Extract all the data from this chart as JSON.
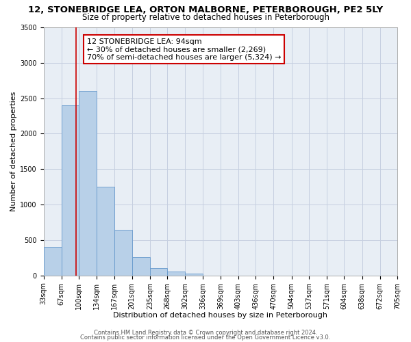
{
  "title1": "12, STONEBRIDGE LEA, ORTON MALBORNE, PETERBOROUGH, PE2 5LY",
  "title2": "Size of property relative to detached houses in Peterborough",
  "xlabel": "Distribution of detached houses by size in Peterborough",
  "ylabel": "Number of detached properties",
  "bar_values": [
    400,
    2400,
    2600,
    1250,
    640,
    260,
    100,
    55,
    30,
    0,
    0,
    0,
    0,
    0,
    0,
    0,
    0,
    0,
    0,
    0
  ],
  "bin_labels": [
    "33sqm",
    "67sqm",
    "100sqm",
    "134sqm",
    "167sqm",
    "201sqm",
    "235sqm",
    "268sqm",
    "302sqm",
    "336sqm",
    "369sqm",
    "403sqm",
    "436sqm",
    "470sqm",
    "504sqm",
    "537sqm",
    "571sqm",
    "604sqm",
    "638sqm",
    "672sqm",
    "705sqm"
  ],
  "bin_edges": [
    33,
    67,
    100,
    134,
    167,
    201,
    235,
    268,
    302,
    336,
    369,
    403,
    436,
    470,
    504,
    537,
    571,
    604,
    638,
    672,
    705
  ],
  "bar_color": "#b8d0e8",
  "bar_edge_color": "#6699cc",
  "vline_x": 94,
  "vline_color": "#cc0000",
  "ylim": [
    0,
    3500
  ],
  "yticks": [
    0,
    500,
    1000,
    1500,
    2000,
    2500,
    3000,
    3500
  ],
  "annotation_title": "12 STONEBRIDGE LEA: 94sqm",
  "annotation_line1": "← 30% of detached houses are smaller (2,269)",
  "annotation_line2": "70% of semi-detached houses are larger (5,324) →",
  "annotation_box_color": "#ffffff",
  "annotation_box_edge": "#cc0000",
  "footer1": "Contains HM Land Registry data © Crown copyright and database right 2024.",
  "footer2": "Contains public sector information licensed under the Open Government Licence v3.0.",
  "bg_color": "#ffffff",
  "axes_bg_color": "#e8eef5",
  "grid_color": "#c5cfe0",
  "title1_fontsize": 9.5,
  "title2_fontsize": 8.5,
  "axis_label_fontsize": 8,
  "tick_fontsize": 7,
  "annotation_fontsize": 8,
  "footer_fontsize": 6
}
